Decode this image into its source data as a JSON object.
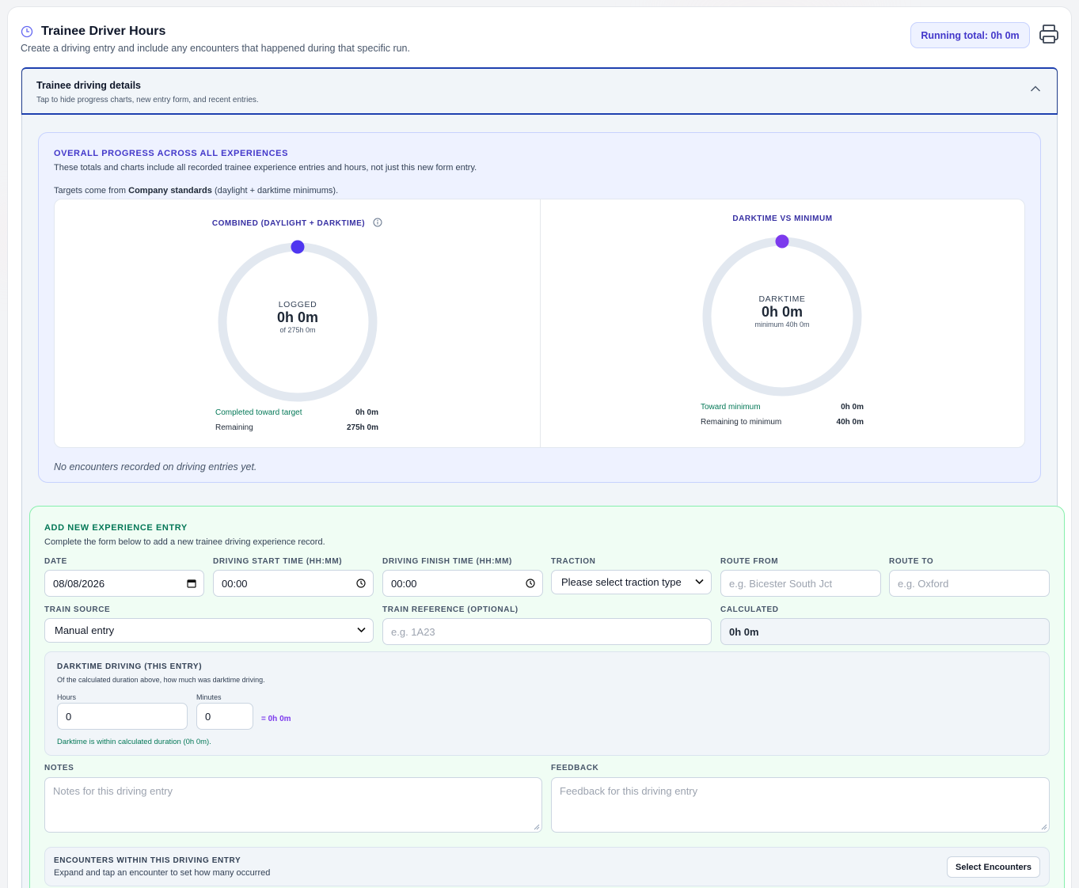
{
  "header": {
    "title": "Trainee Driver Hours",
    "subtitle": "Create a driving entry and include any encounters that happened during that specific run.",
    "running_total": "Running total: 0h 0m"
  },
  "accordion": {
    "title": "Trainee driving details",
    "subtitle": "Tap to hide progress charts, new entry form, and recent entries."
  },
  "progress": {
    "heading": "OVERALL PROGRESS ACROSS ALL EXPERIENCES",
    "description": "These totals and charts include all recorded trainee experience entries and hours, not just this new form entry.",
    "targets_prefix": "Targets come from ",
    "targets_source": "Company standards",
    "targets_suffix": " (daylight + darktime minimums).",
    "combined": {
      "label": "COMBINED (DAYLIGHT + DARKTIME)",
      "center_label": "LOGGED",
      "center_value": "0h 0m",
      "center_of": "of 275h 0m",
      "completed_label": "Completed toward target",
      "completed_value": "0h 0m",
      "remaining_label": "Remaining",
      "remaining_value": "275h 0m",
      "progress_fraction": 0
    },
    "darktime": {
      "label": "DARKTIME VS MINIMUM",
      "center_label": "DARKTIME",
      "center_value": "0h 0m",
      "center_of": "minimum 40h 0m",
      "toward_label": "Toward minimum",
      "toward_value": "0h 0m",
      "remaining_label": "Remaining to minimum",
      "remaining_value": "40h 0m",
      "progress_fraction": 0
    },
    "no_encounters": "No encounters recorded on driving entries yet."
  },
  "entry": {
    "heading": "ADD NEW EXPERIENCE ENTRY",
    "description": "Complete the form below to add a new trainee driving experience record.",
    "date": {
      "label": "DATE",
      "value": "08/08/2026"
    },
    "start": {
      "label": "DRIVING START TIME (HH:MM)",
      "value": "00:00"
    },
    "finish": {
      "label": "DRIVING FINISH TIME (HH:MM)",
      "value": "00:00"
    },
    "traction": {
      "label": "TRACTION",
      "value": "Please select traction type"
    },
    "route_from": {
      "label": "ROUTE FROM",
      "placeholder": "e.g. Bicester South Jct"
    },
    "route_to": {
      "label": "ROUTE TO",
      "placeholder": "e.g. Oxford"
    },
    "train_source": {
      "label": "TRAIN SOURCE",
      "value": "Manual entry"
    },
    "train_reference": {
      "label": "TRAIN REFERENCE (OPTIONAL)",
      "placeholder": "e.g. 1A23"
    },
    "calculated": {
      "label": "CALCULATED",
      "value": "0h 0m"
    },
    "darktime": {
      "heading": "DARKTIME DRIVING (THIS ENTRY)",
      "description": "Of the calculated duration above, how much was darktime driving.",
      "hours_label": "Hours",
      "hours_value": "0",
      "minutes_label": "Minutes",
      "minutes_value": "0",
      "equals": "= 0h 0m",
      "status": "Darktime is within calculated duration (0h 0m)."
    },
    "notes": {
      "label": "NOTES",
      "placeholder": "Notes for this driving entry"
    },
    "feedback": {
      "label": "FEEDBACK",
      "placeholder": "Feedback for this driving entry"
    },
    "encounters": {
      "heading": "ENCOUNTERS WITHIN THIS DRIVING ENTRY",
      "description": "Expand and tap an encounter to set how many occurred",
      "button": "Select Encounters"
    }
  },
  "colors": {
    "accent": "#4f46e5",
    "ring_track": "#e2e8f0",
    "combined_dot": "#4f36f0",
    "darktime_dot": "#7c3aed",
    "success": "#047857"
  }
}
